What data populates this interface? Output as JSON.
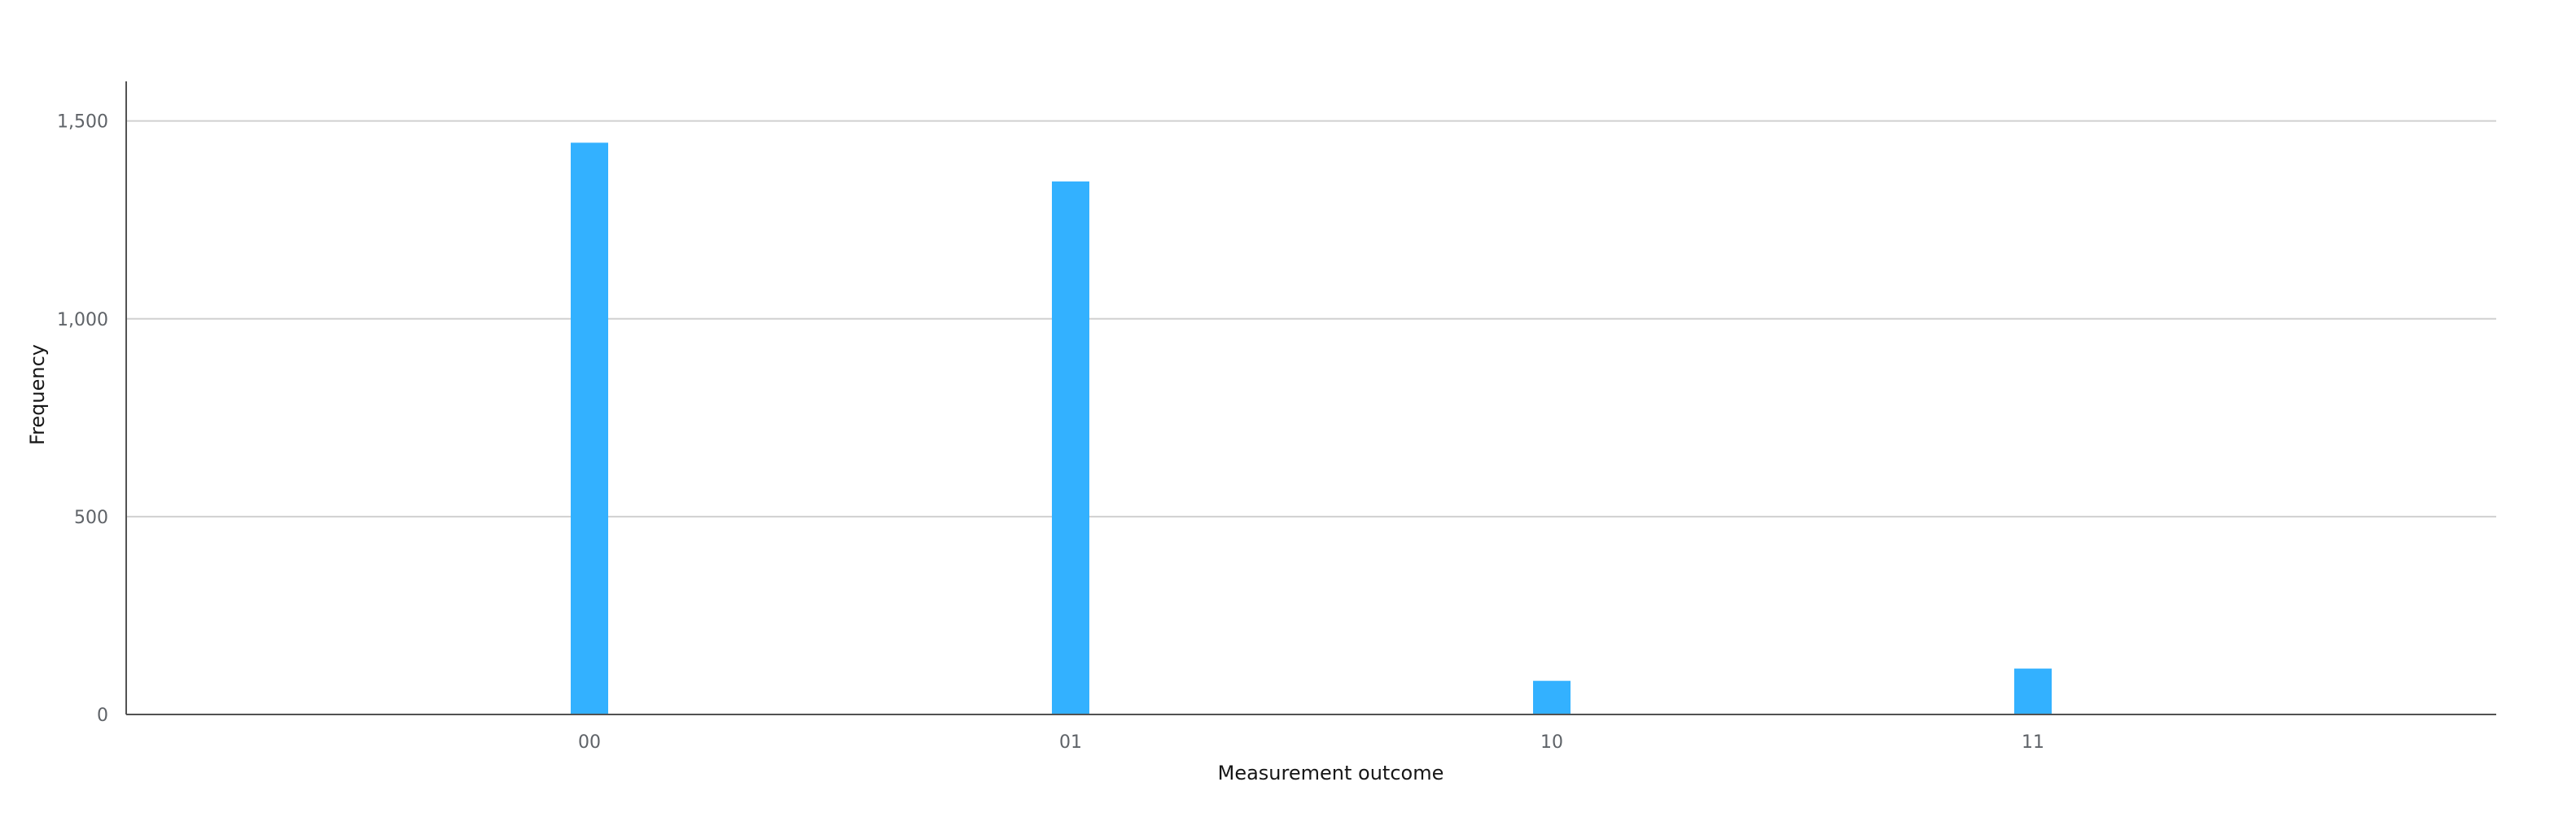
{
  "chart_data": {
    "type": "bar",
    "categories": [
      "00",
      "01",
      "10",
      "11"
    ],
    "values": [
      1445,
      1347,
      85,
      116
    ],
    "xlabel": "Measurement outcome",
    "ylabel": "Frequency",
    "ylim": [
      0,
      1600
    ],
    "yticks": [
      0,
      500,
      1000,
      1500
    ],
    "ytick_labels": [
      "0",
      "500",
      "1,000",
      "1,500"
    ],
    "grid": true,
    "legend": "none",
    "colors": {
      "bar": "#33b1ff",
      "grid": "#d0d0d0",
      "axis": "#525252"
    }
  }
}
